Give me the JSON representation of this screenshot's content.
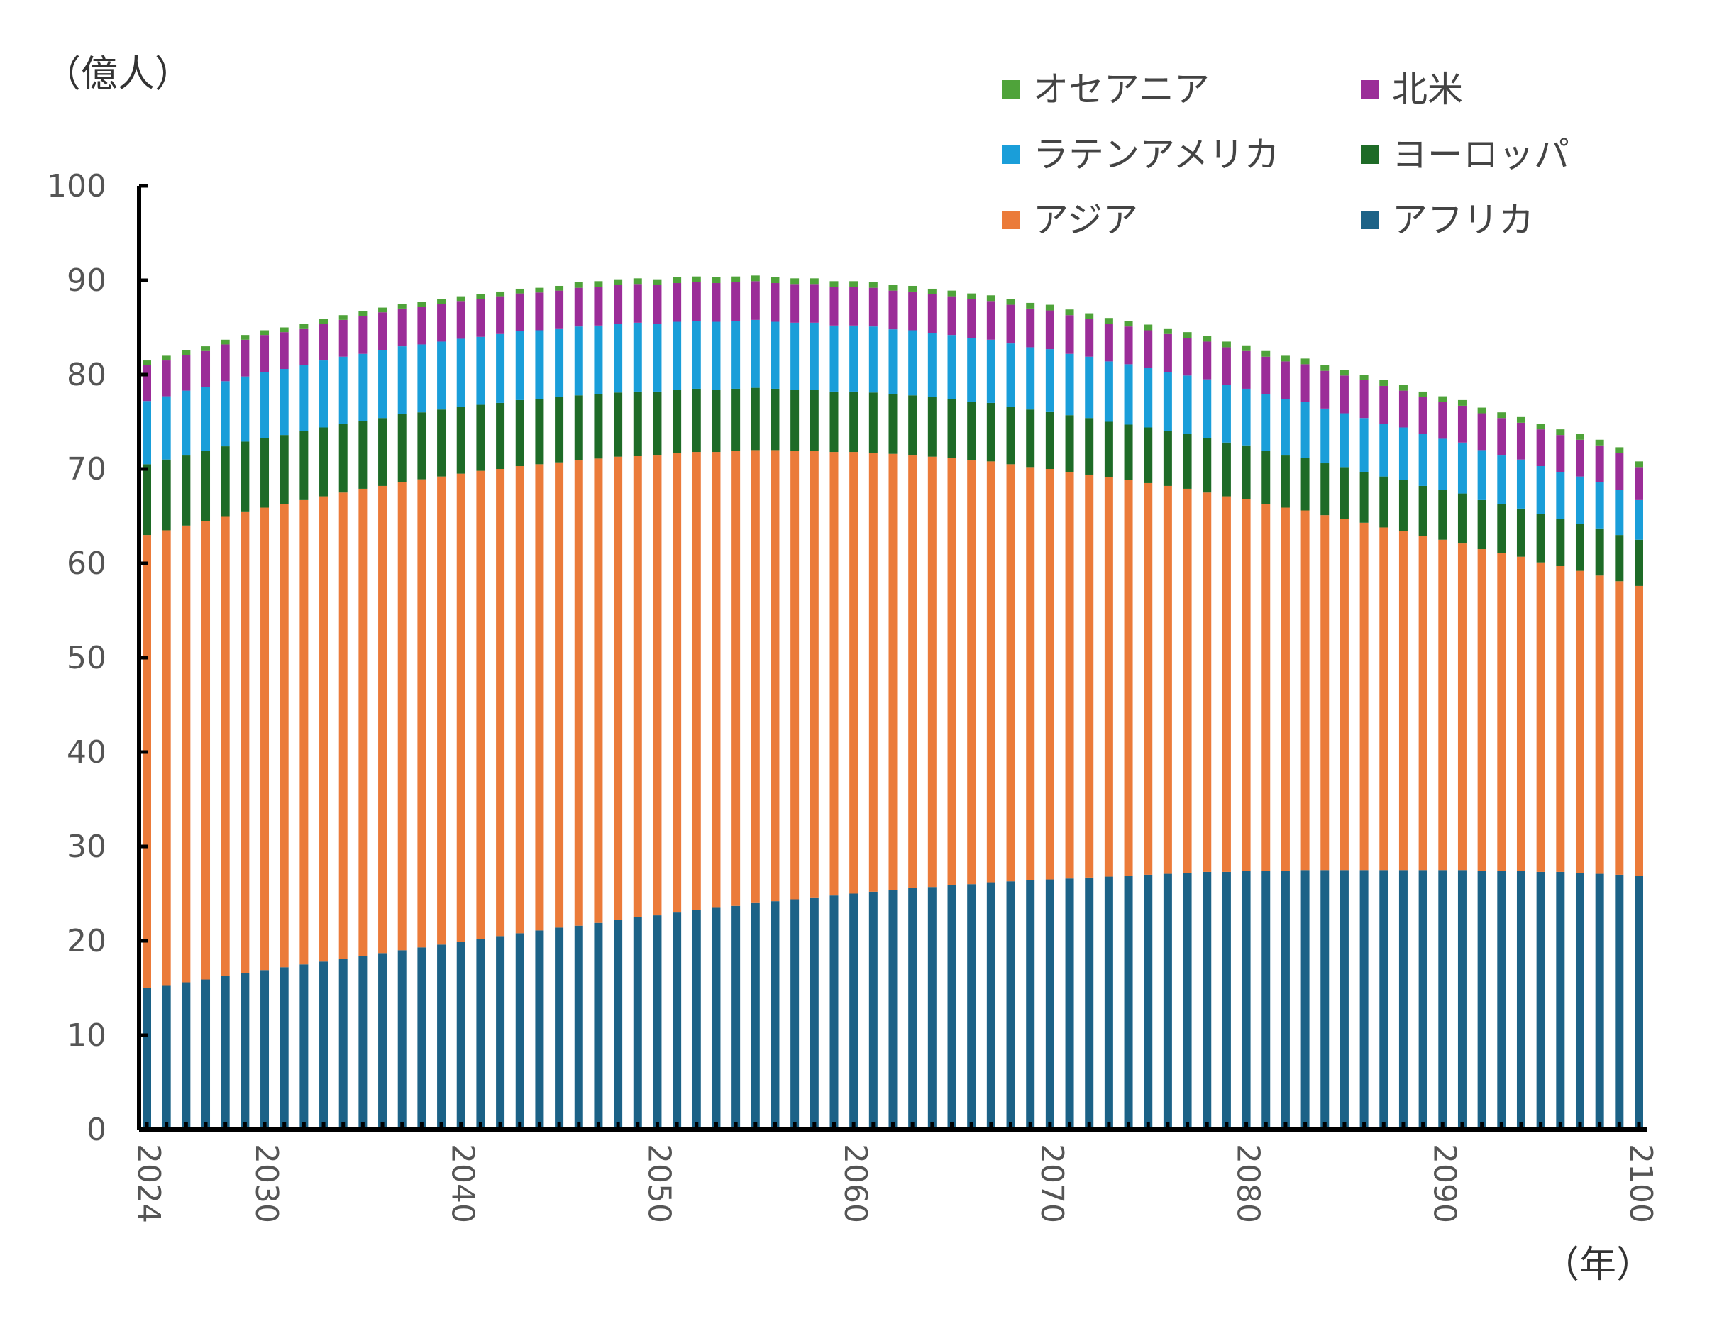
{
  "chart_data": {
    "type": "bar",
    "stacked": true,
    "y_unit": "（億人）",
    "x_unit": "（年）",
    "ylim": [
      0,
      100
    ],
    "yticks": [
      0,
      10,
      20,
      30,
      40,
      50,
      60,
      70,
      80,
      90,
      100
    ],
    "x_start": 2024,
    "x_end": 2100,
    "xtick_labels": [
      "2024",
      "2030",
      "2040",
      "2050",
      "2060",
      "2070",
      "2080",
      "2090",
      "2100"
    ],
    "grid": false,
    "legend_position": "top-right",
    "legend": [
      {
        "name": "オセアニア",
        "color": "#4fa33a"
      },
      {
        "name": "北米",
        "color": "#9b2d98"
      },
      {
        "name": "ラテンアメリカ",
        "color": "#1a9ed9"
      },
      {
        "name": "ヨーロッパ",
        "color": "#1e6b27"
      },
      {
        "name": "アジア",
        "color": "#eb7b3a"
      },
      {
        "name": "アフリカ",
        "color": "#1c6287"
      }
    ],
    "x": [
      2024,
      2025,
      2026,
      2027,
      2028,
      2029,
      2030,
      2031,
      2032,
      2033,
      2034,
      2035,
      2036,
      2037,
      2038,
      2039,
      2040,
      2041,
      2042,
      2043,
      2044,
      2045,
      2046,
      2047,
      2048,
      2049,
      2050,
      2051,
      2052,
      2053,
      2054,
      2055,
      2056,
      2057,
      2058,
      2059,
      2060,
      2061,
      2062,
      2063,
      2064,
      2065,
      2066,
      2067,
      2068,
      2069,
      2070,
      2071,
      2072,
      2073,
      2074,
      2075,
      2076,
      2077,
      2078,
      2079,
      2080,
      2081,
      2082,
      2083,
      2084,
      2085,
      2086,
      2087,
      2088,
      2089,
      2090,
      2091,
      2092,
      2093,
      2094,
      2095,
      2096,
      2097,
      2098,
      2099,
      2100
    ],
    "series": [
      {
        "name": "アフリカ",
        "color": "#1c6287",
        "values": [
          15.0,
          15.3,
          15.6,
          15.9,
          16.3,
          16.6,
          16.9,
          17.2,
          17.5,
          17.8,
          18.1,
          18.4,
          18.7,
          19.0,
          19.3,
          19.6,
          19.9,
          20.2,
          20.5,
          20.8,
          21.1,
          21.4,
          21.6,
          21.9,
          22.2,
          22.5,
          22.7,
          23.0,
          23.3,
          23.5,
          23.7,
          24.0,
          24.2,
          24.4,
          24.6,
          24.8,
          25.0,
          25.2,
          25.4,
          25.6,
          25.7,
          25.9,
          26.0,
          26.2,
          26.3,
          26.4,
          26.5,
          26.6,
          26.7,
          26.8,
          26.9,
          27.0,
          27.1,
          27.2,
          27.3,
          27.3,
          27.4,
          27.4,
          27.4,
          27.5,
          27.5,
          27.5,
          27.5,
          27.5,
          27.5,
          27.5,
          27.5,
          27.5,
          27.4,
          27.4,
          27.4,
          27.3,
          27.3,
          27.2,
          27.1,
          27.0,
          26.9
        ]
      },
      {
        "name": "アジア",
        "color": "#eb7b3a",
        "values": [
          48.0,
          48.2,
          48.4,
          48.6,
          48.7,
          48.9,
          49.0,
          49.1,
          49.2,
          49.3,
          49.4,
          49.5,
          49.5,
          49.6,
          49.6,
          49.6,
          49.6,
          49.6,
          49.5,
          49.5,
          49.4,
          49.3,
          49.3,
          49.2,
          49.1,
          48.9,
          48.8,
          48.7,
          48.5,
          48.3,
          48.2,
          48.0,
          47.8,
          47.5,
          47.3,
          47.0,
          46.8,
          46.5,
          46.2,
          45.9,
          45.6,
          45.3,
          44.9,
          44.6,
          44.2,
          43.8,
          43.5,
          43.1,
          42.7,
          42.3,
          41.9,
          41.5,
          41.1,
          40.7,
          40.2,
          39.8,
          39.4,
          38.9,
          38.5,
          38.1,
          37.6,
          37.2,
          36.8,
          36.3,
          35.9,
          35.4,
          35.0,
          34.6,
          34.1,
          33.7,
          33.3,
          32.8,
          32.4,
          32.0,
          31.6,
          31.1,
          30.7
        ]
      },
      {
        "name": "ヨーロッパ",
        "color": "#1e6b27",
        "values": [
          7.5,
          7.5,
          7.5,
          7.4,
          7.4,
          7.4,
          7.4,
          7.3,
          7.3,
          7.3,
          7.3,
          7.2,
          7.2,
          7.2,
          7.1,
          7.1,
          7.1,
          7.0,
          7.0,
          7.0,
          6.9,
          6.9,
          6.9,
          6.8,
          6.8,
          6.8,
          6.7,
          6.7,
          6.7,
          6.6,
          6.6,
          6.6,
          6.5,
          6.5,
          6.5,
          6.4,
          6.4,
          6.4,
          6.3,
          6.3,
          6.3,
          6.2,
          6.2,
          6.2,
          6.1,
          6.1,
          6.1,
          6.0,
          6.0,
          5.9,
          5.9,
          5.9,
          5.8,
          5.8,
          5.8,
          5.7,
          5.7,
          5.6,
          5.6,
          5.6,
          5.5,
          5.5,
          5.4,
          5.4,
          5.4,
          5.3,
          5.3,
          5.3,
          5.2,
          5.2,
          5.1,
          5.1,
          5.0,
          5.0,
          5.0,
          4.9,
          4.9
        ]
      },
      {
        "name": "ラテンアメリカ",
        "color": "#1a9ed9",
        "values": [
          6.7,
          6.7,
          6.8,
          6.8,
          6.9,
          6.9,
          7.0,
          7.0,
          7.0,
          7.1,
          7.1,
          7.1,
          7.2,
          7.2,
          7.2,
          7.2,
          7.2,
          7.2,
          7.3,
          7.3,
          7.3,
          7.3,
          7.3,
          7.3,
          7.3,
          7.3,
          7.2,
          7.2,
          7.2,
          7.2,
          7.2,
          7.2,
          7.1,
          7.1,
          7.1,
          7.0,
          7.0,
          7.0,
          6.9,
          6.9,
          6.8,
          6.8,
          6.8,
          6.7,
          6.7,
          6.6,
          6.6,
          6.5,
          6.5,
          6.4,
          6.4,
          6.3,
          6.3,
          6.2,
          6.2,
          6.1,
          6.0,
          6.0,
          5.9,
          5.9,
          5.8,
          5.7,
          5.7,
          5.6,
          5.6,
          5.5,
          5.4,
          5.4,
          5.3,
          5.2,
          5.2,
          5.1,
          5.0,
          5.0,
          4.9,
          4.8,
          4.2
        ]
      },
      {
        "name": "北米",
        "color": "#9b2d98",
        "values": [
          3.8,
          3.8,
          3.8,
          3.8,
          3.9,
          3.9,
          3.9,
          3.9,
          3.9,
          3.9,
          3.9,
          4.0,
          4.0,
          4.0,
          4.0,
          4.0,
          4.0,
          4.0,
          4.0,
          4.0,
          4.0,
          4.0,
          4.1,
          4.1,
          4.1,
          4.1,
          4.1,
          4.1,
          4.1,
          4.1,
          4.1,
          4.1,
          4.1,
          4.1,
          4.1,
          4.1,
          4.1,
          4.1,
          4.1,
          4.1,
          4.1,
          4.1,
          4.1,
          4.1,
          4.1,
          4.1,
          4.1,
          4.1,
          4.0,
          4.0,
          4.0,
          4.0,
          4.0,
          4.0,
          4.0,
          4.0,
          4.0,
          4.0,
          4.0,
          4.0,
          4.0,
          4.0,
          4.0,
          4.0,
          3.9,
          3.9,
          3.9,
          3.9,
          3.9,
          3.9,
          3.9,
          3.9,
          3.9,
          3.9,
          3.9,
          3.9,
          3.5
        ]
      },
      {
        "name": "オセアニア",
        "color": "#4fa33a",
        "values": [
          0.5,
          0.5,
          0.5,
          0.5,
          0.5,
          0.5,
          0.5,
          0.5,
          0.5,
          0.5,
          0.5,
          0.5,
          0.5,
          0.5,
          0.5,
          0.5,
          0.5,
          0.5,
          0.5,
          0.5,
          0.5,
          0.5,
          0.6,
          0.6,
          0.6,
          0.6,
          0.6,
          0.6,
          0.6,
          0.6,
          0.6,
          0.6,
          0.6,
          0.6,
          0.6,
          0.6,
          0.6,
          0.6,
          0.6,
          0.6,
          0.6,
          0.6,
          0.6,
          0.6,
          0.6,
          0.6,
          0.6,
          0.6,
          0.6,
          0.6,
          0.6,
          0.6,
          0.6,
          0.6,
          0.6,
          0.6,
          0.6,
          0.6,
          0.6,
          0.6,
          0.6,
          0.6,
          0.6,
          0.6,
          0.6,
          0.6,
          0.6,
          0.6,
          0.6,
          0.6,
          0.6,
          0.6,
          0.6,
          0.6,
          0.6,
          0.6,
          0.6
        ]
      }
    ]
  }
}
